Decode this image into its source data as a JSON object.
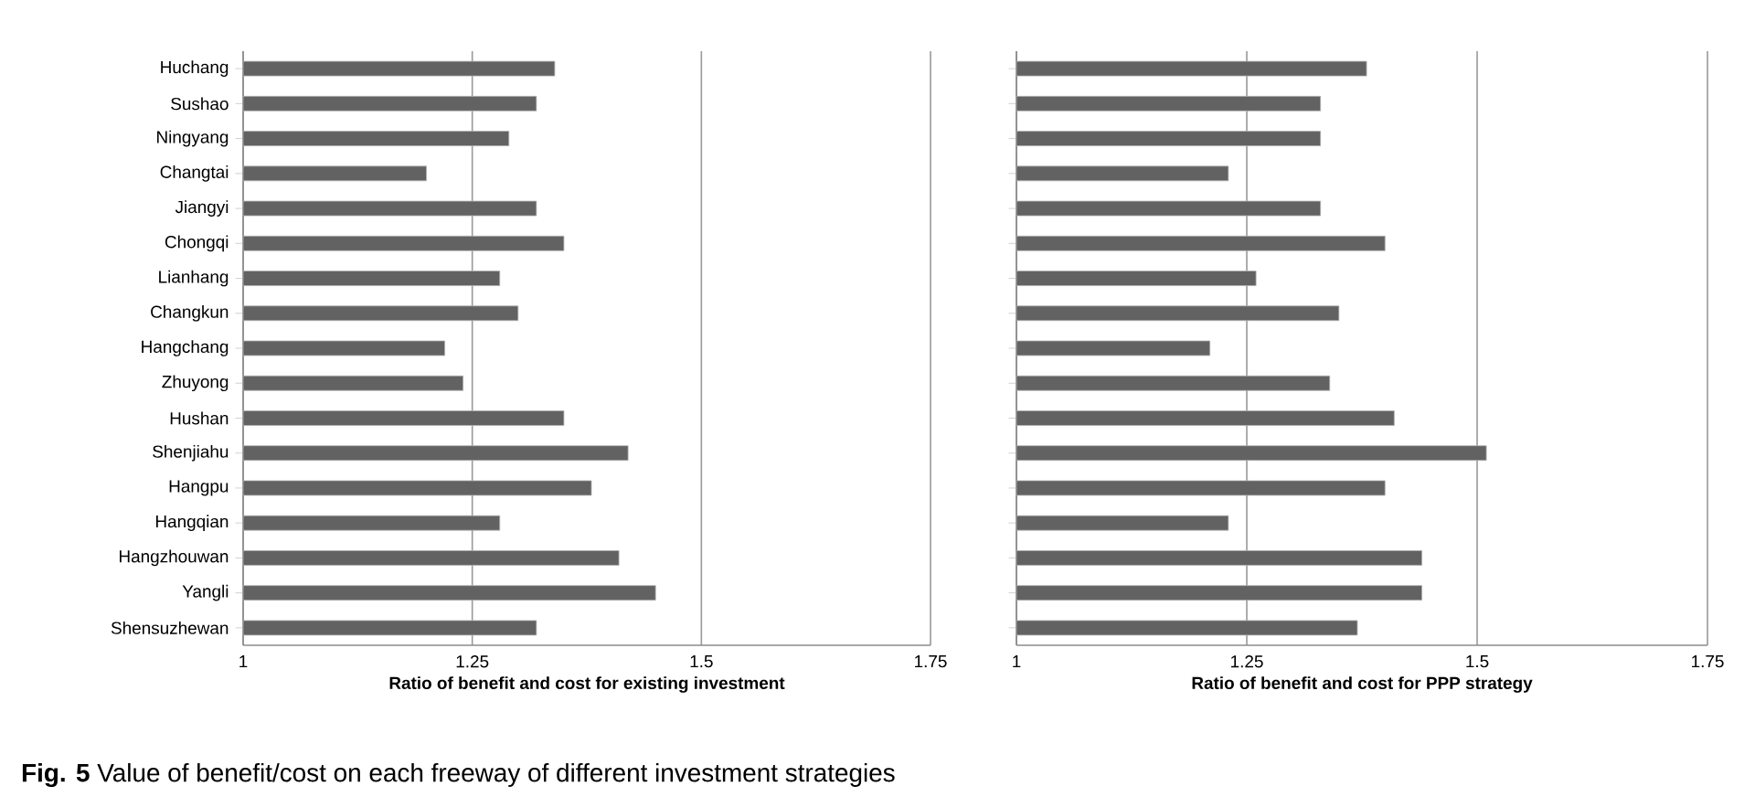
{
  "chart_data": [
    {
      "type": "bar",
      "orientation": "horizontal",
      "xlabel": "Ratio of benefit and cost for existing investment",
      "categories": [
        "Huchang",
        "Sushao",
        "Ningyang",
        "Changtai",
        "Jiangyi",
        "Chongqi",
        "Lianhang",
        "Changkun",
        "Hangchang",
        "Zhuyong",
        "Hushan",
        "Shenjiahu",
        "Hangpu",
        "Hangqian",
        "Hangzhouwan",
        "Yangli",
        "Shensuzhewan"
      ],
      "values": [
        1.34,
        1.32,
        1.29,
        1.2,
        1.32,
        1.35,
        1.28,
        1.3,
        1.22,
        1.24,
        1.35,
        1.42,
        1.38,
        1.28,
        1.41,
        1.45,
        1.32
      ],
      "color": "#626262",
      "xlim": [
        1,
        1.75
      ],
      "xticks": [
        1,
        1.25,
        1.5,
        1.75
      ],
      "grid": "x",
      "annotations": [
        "**Fig. 5** Value of benefit/cost on each freeway of different investment strategies"
      ]
    },
    {
      "type": "bar",
      "orientation": "horizontal",
      "xlabel": "Ratio of benefit and cost for PPP strategy",
      "categories": [
        null,
        null,
        null,
        null,
        null,
        null,
        null,
        null,
        null,
        null,
        null,
        null,
        null,
        null,
        null,
        null,
        null
      ],
      "values": [
        1.38,
        1.33,
        1.33,
        1.23,
        1.33,
        1.4,
        1.26,
        1.35,
        1.21,
        1.34,
        1.41,
        1.51,
        1.4,
        1.23,
        1.44,
        1.44,
        1.37
      ],
      "color": "#626262",
      "xlim": [
        1,
        1.75
      ],
      "xticks": [
        1,
        1.25,
        1.5,
        1.75
      ],
      "grid": "x",
      "tick_labels": "x"
    }
  ]
}
